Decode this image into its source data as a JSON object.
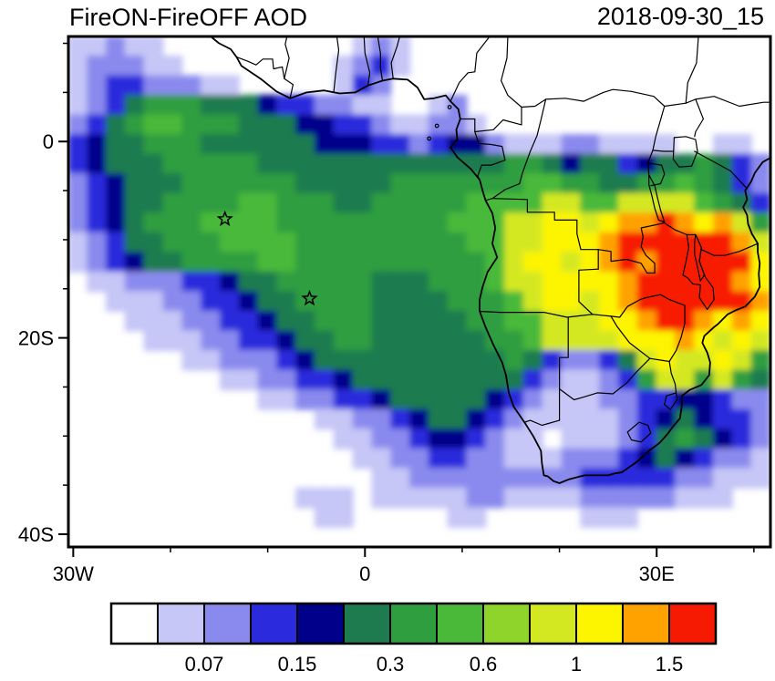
{
  "chart_data": {
    "type": "heatmap",
    "title": "FireON-FireOFF AOD",
    "timestamp": "2018-09-30_15",
    "map_extent": {
      "lon_min": -30.5,
      "lon_max": 41.7,
      "lat_min": -41.3,
      "lat_max": 10.7
    },
    "axes": {
      "x": {
        "ticks": [
          {
            "label": "30W",
            "lon": -30
          },
          {
            "label": "0",
            "lon": 0
          },
          {
            "label": "30E",
            "lon": 30
          }
        ]
      },
      "y": {
        "ticks": [
          {
            "label": "0",
            "lat": 0
          },
          {
            "label": "20S",
            "lat": -20
          },
          {
            "label": "40S",
            "lat": -40
          }
        ]
      }
    },
    "levels": {
      "colors": [
        "#ffffff",
        "#c6c6f7",
        "#8a8aee",
        "#2b2bdd",
        "#00008b",
        "#1e7b50",
        "#2f9e3f",
        "#4ab93a",
        "#8ed42a",
        "#d4e821",
        "#fdf400",
        "#ffa200",
        "#f71a02"
      ],
      "boundary_labels": [
        {
          "text": "0.07",
          "boundary_index": 2
        },
        {
          "text": "0.15",
          "boundary_index": 4
        },
        {
          "text": "0.3",
          "boundary_index": 6
        },
        {
          "text": "0.6",
          "boundary_index": 8
        },
        {
          "text": "1",
          "boundary_index": 10
        },
        {
          "text": "1.5",
          "boundary_index": 12
        }
      ]
    },
    "field": {
      "ncols": 37,
      "nrows": 26,
      "row_order": "north-to-south",
      "encoding": "each character is an AOD color-level index: 0-9, A=10, B=11, C=12 (see levels.colors)",
      "rows": [
        "1121100000000001210000000000000000000",
        "1222110000000012310000000000000000000",
        "1233222110000013200000000000000000000",
        "1235666555433221100120000000000000000",
        "2356776665554433211221000000000000000",
        "3455666555555444332344211122111100110",
        "3455566666555555555555566545534556532",
        "2345556666665555566666667766556676532",
        "2345566667766655666667777997799997653",
        "2345666777766666666677799AA9ABBCBAB96",
        "1235566677776666666667799AAABCCCCCCB9",
        "123455666677666666666679AA9ABCBCCCCCA",
        "0112223345566666555666799AAAABCCCCCBA",
        "0011122334556666555566679AA9ABCCCCCCB",
        "0001112233455666555556677999AABCCBABA",
        "00001112233455665555556679999AAABA9A9",
        "0000001122234555555555565322359A99A96",
        "0000000011223345555555553211236996965",
        "0000000000112233455555432111223344322",
        "0000000000000112234554321111123454332",
        "0000000000000011223443211011123565432",
        "0000000000000001122332211122234543221",
        "0000000000000000112222222223333322111",
        "0000000000001110111112211112222211100",
        "0000000000000110000011000001110000000",
        "0000000000000000000000000000000000000"
      ]
    },
    "markers": [
      {
        "type": "star",
        "lon": -14.4,
        "lat": -7.9
      },
      {
        "type": "star",
        "lon": -5.7,
        "lat": -16.0
      }
    ]
  }
}
